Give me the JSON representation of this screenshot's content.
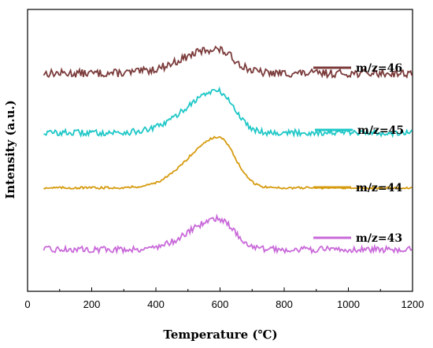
{
  "chart_data": {
    "type": "line",
    "xlabel": "Temperature (℃)",
    "ylabel": "Intensity (a.u.)",
    "xlim": [
      0,
      1200
    ],
    "xticks": [
      0,
      200,
      400,
      600,
      800,
      1000,
      1200
    ],
    "x_tick_labels": [
      "0",
      "200",
      "400",
      "600",
      "800",
      "1000",
      "1200"
    ],
    "y_ticks_shown": false,
    "grid": false,
    "legend": "right, each label beside its curve",
    "series": [
      {
        "name": "m/z=46",
        "color": "#7b3b3b",
        "baseline": 4.95,
        "peak_center": 585,
        "peak_height": 0.55,
        "peak_width": 75,
        "noise": 0.09,
        "x": [
          50,
          1200
        ]
      },
      {
        "name": "m/z=45",
        "color": "#1fc7c7",
        "baseline": 3.6,
        "peak_center": 590,
        "peak_height": 0.95,
        "peak_width": 70,
        "noise": 0.07,
        "x": [
          50,
          1200
        ]
      },
      {
        "name": "m/z=44",
        "color": "#d69b0f",
        "baseline": 2.35,
        "peak_center": 595,
        "peak_height": 1.15,
        "peak_width": 68,
        "noise": 0.025,
        "x": [
          50,
          1200
        ]
      },
      {
        "name": "m/z=43",
        "color": "#c96ad9",
        "baseline": 0.95,
        "peak_center": 595,
        "peak_height": 0.7,
        "peak_width": 65,
        "noise": 0.07,
        "x": [
          50,
          1200
        ]
      }
    ]
  }
}
